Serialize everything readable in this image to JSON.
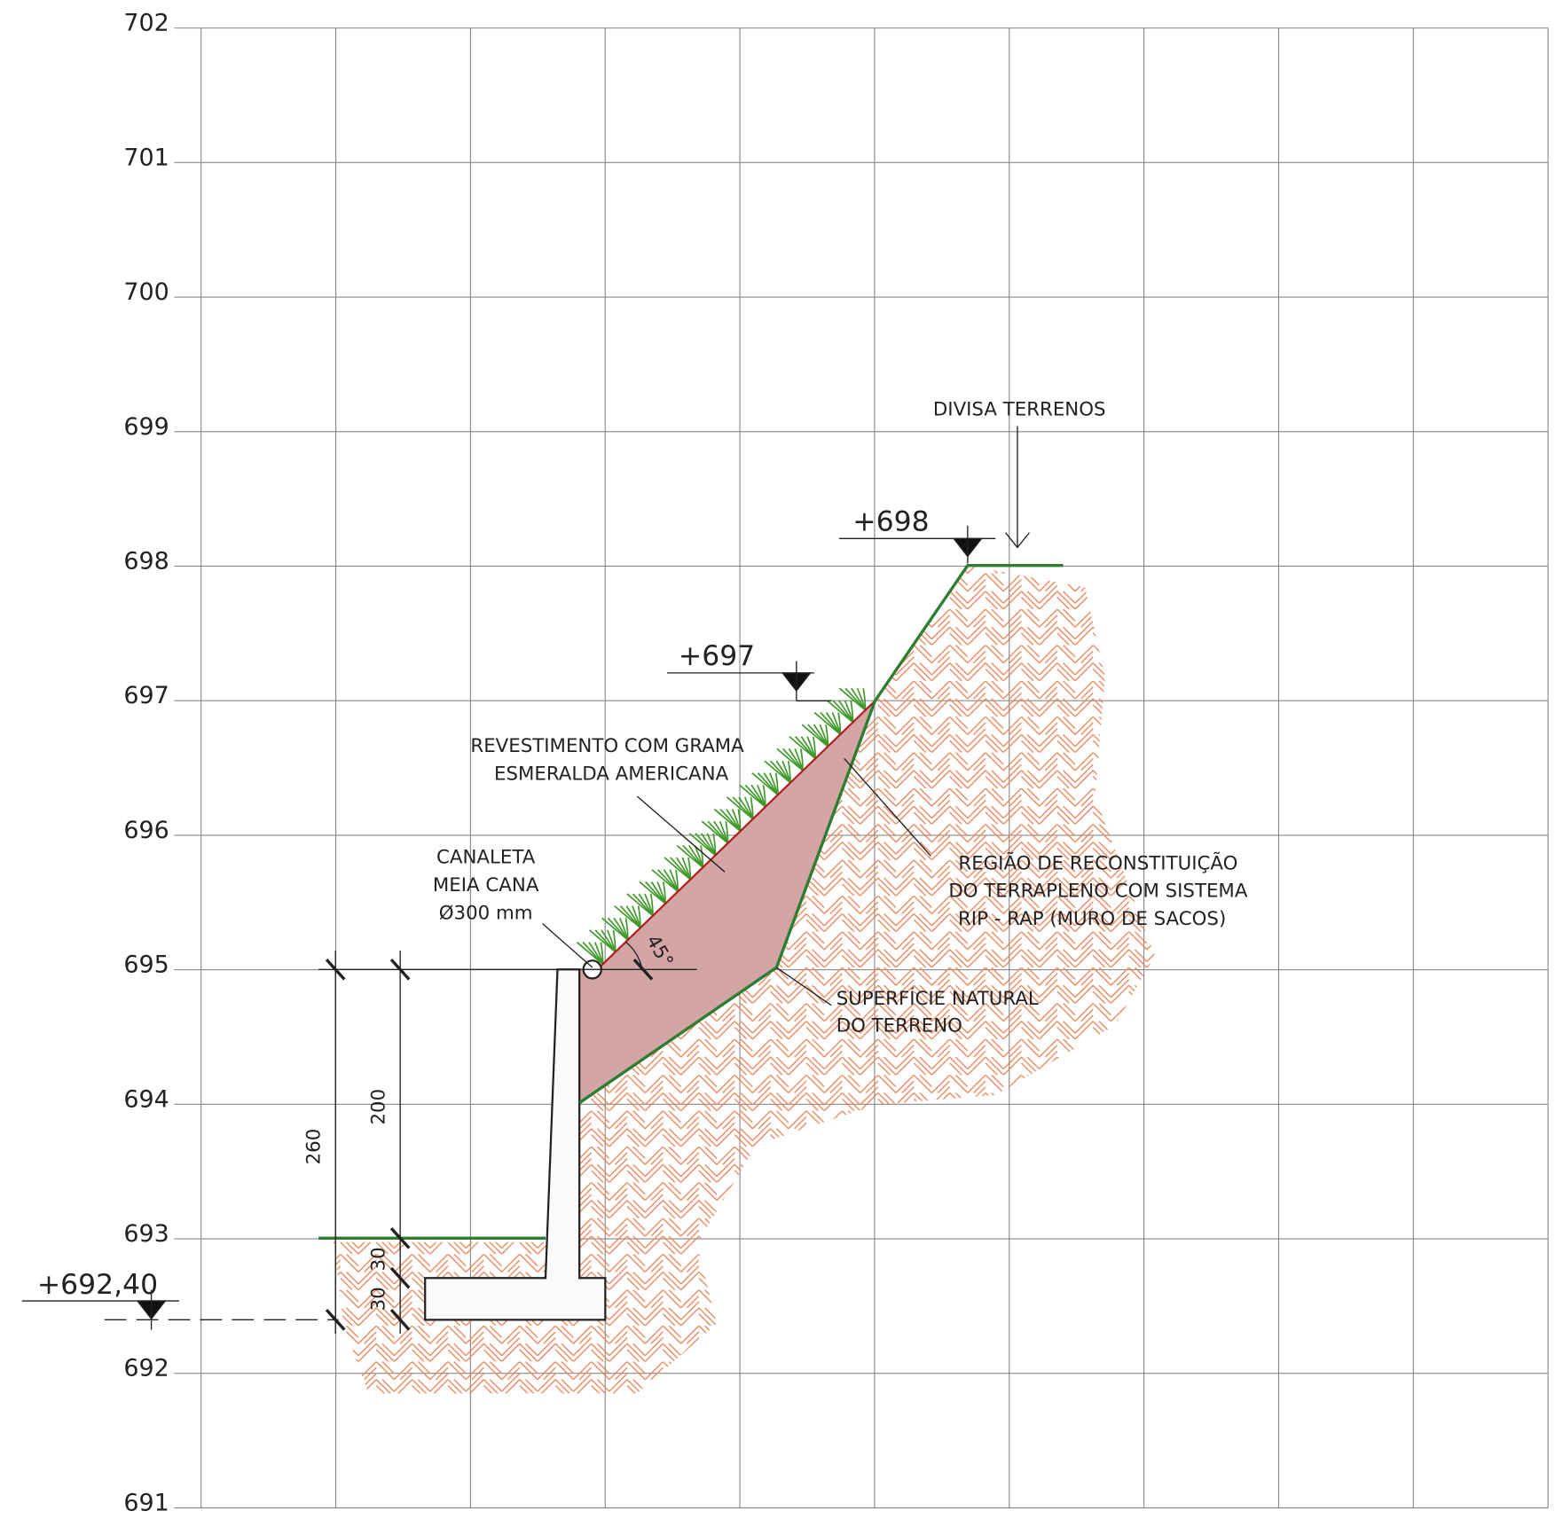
{
  "axis": {
    "ticks": [
      702,
      701,
      700,
      699,
      698,
      697,
      696,
      695,
      694,
      693,
      692,
      691
    ]
  },
  "elevations": [
    "+698",
    "+697",
    "+692,40"
  ],
  "annotations": {
    "boundary": "DIVISA TERRENOS",
    "grass": [
      "REVESTIMENTO COM GRAMA",
      "ESMERALDA AMERICANA"
    ],
    "channel": [
      "CANALETA",
      "MEIA CANA",
      "Ø300 mm"
    ],
    "region": [
      "REGIÃO DE RECONSTITUIÇÃO",
      "DO TERRAPLENO COM SISTEMA",
      "RIP - RAP (MURO DE SACOS)"
    ],
    "surface": [
      "SUPERFÍCIE NATURAL",
      "DO TERRENO"
    ]
  },
  "dimensions": {
    "labels": [
      260,
      200,
      30,
      30
    ],
    "angle": "45°"
  }
}
